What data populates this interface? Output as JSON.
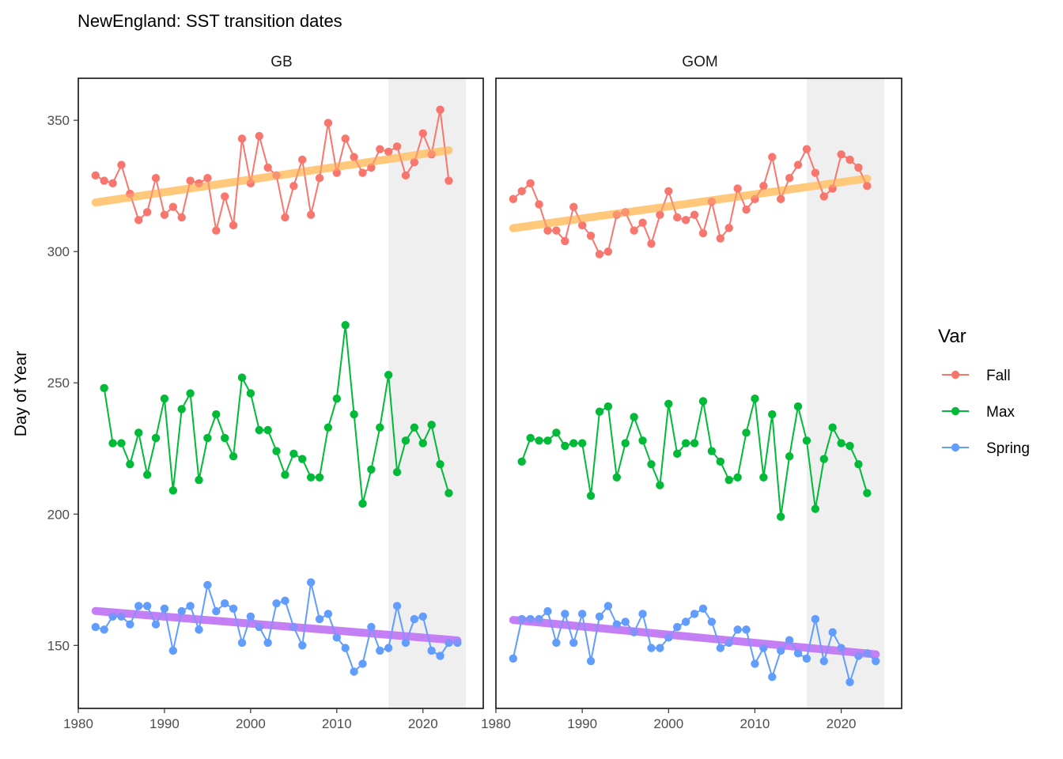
{
  "chart_data": {
    "type": "line",
    "title": "NewEngland: SST transition dates",
    "ylabel": "Day of Year",
    "xlabel": "",
    "xlim": [
      1980,
      2027
    ],
    "ylim": [
      126,
      366
    ],
    "x_ticks": [
      1980,
      1990,
      2000,
      2010,
      2020
    ],
    "y_ticks": [
      150,
      200,
      250,
      300,
      350
    ],
    "grid": false,
    "legend": {
      "title": "Var",
      "position": "right",
      "entries": [
        {
          "name": "Fall",
          "color": "#F8766D"
        },
        {
          "name": "Max",
          "color": "#00BA38"
        },
        {
          "name": "Spring",
          "color": "#619CFF"
        }
      ]
    },
    "shaded_region": {
      "x": [
        2016,
        2025
      ],
      "color": "#efefef"
    },
    "panels": [
      {
        "name": "GB",
        "series": [
          {
            "name": "Fall",
            "x": [
              1982,
              1983,
              1984,
              1985,
              1986,
              1987,
              1988,
              1989,
              1990,
              1991,
              1992,
              1993,
              1994,
              1995,
              1996,
              1997,
              1998,
              1999,
              2000,
              2001,
              2002,
              2003,
              2004,
              2005,
              2006,
              2007,
              2008,
              2009,
              2010,
              2011,
              2012,
              2013,
              2014,
              2015,
              2016,
              2017,
              2018,
              2019,
              2020,
              2021,
              2022,
              2023
            ],
            "values": [
              329,
              327,
              326,
              333,
              322,
              312,
              315,
              328,
              314,
              317,
              313,
              327,
              326,
              328,
              308,
              321,
              310,
              343,
              326,
              344,
              332,
              329,
              313,
              325,
              335,
              314,
              328,
              349,
              330,
              343,
              336,
              330,
              332,
              339,
              338,
              340,
              329,
              334,
              345,
              337,
              354,
              327
            ]
          },
          {
            "name": "Max",
            "x": [
              1983,
              1984,
              1985,
              1986,
              1987,
              1988,
              1989,
              1990,
              1991,
              1992,
              1993,
              1994,
              1995,
              1996,
              1997,
              1998,
              1999,
              2000,
              2001,
              2002,
              2003,
              2004,
              2005,
              2006,
              2007,
              2008,
              2009,
              2010,
              2011,
              2012,
              2013,
              2014,
              2015,
              2016,
              2017,
              2018,
              2019,
              2020,
              2021,
              2022,
              2023
            ],
            "values": [
              248,
              227,
              227,
              219,
              231,
              215,
              229,
              244,
              209,
              240,
              246,
              213,
              229,
              238,
              229,
              222,
              252,
              246,
              232,
              232,
              224,
              215,
              223,
              221,
              214,
              214,
              233,
              244,
              272,
              238,
              204,
              217,
              233,
              253,
              216,
              228,
              233,
              227,
              234,
              219,
              208
            ]
          },
          {
            "name": "Spring",
            "x": [
              1982,
              1983,
              1984,
              1985,
              1986,
              1987,
              1988,
              1989,
              1990,
              1991,
              1992,
              1993,
              1994,
              1995,
              1996,
              1997,
              1998,
              1999,
              2000,
              2001,
              2002,
              2003,
              2004,
              2005,
              2006,
              2007,
              2008,
              2009,
              2010,
              2011,
              2012,
              2013,
              2014,
              2015,
              2016,
              2017,
              2018,
              2019,
              2020,
              2021,
              2022,
              2023,
              2024
            ],
            "values": [
              157,
              156,
              161,
              161,
              158,
              165,
              165,
              158,
              164,
              148,
              163,
              165,
              156,
              173,
              163,
              166,
              164,
              151,
              161,
              157,
              151,
              166,
              167,
              157,
              150,
              174,
              160,
              162,
              153,
              149,
              140,
              143,
              157,
              148,
              149,
              165,
              151,
              160,
              161,
              148,
              146,
              151,
              151
            ]
          }
        ],
        "trends": [
          {
            "name": "Fall",
            "x": [
              1982,
              2023
            ],
            "values": [
              318.7,
              338.6
            ],
            "color": "#FFC87A"
          },
          {
            "name": "Spring",
            "x": [
              1982,
              2024
            ],
            "values": [
              163.1,
              151.9
            ],
            "color": "#C47FF4"
          }
        ]
      },
      {
        "name": "GOM",
        "series": [
          {
            "name": "Fall",
            "x": [
              1982,
              1983,
              1984,
              1985,
              1986,
              1987,
              1988,
              1989,
              1990,
              1991,
              1992,
              1993,
              1994,
              1995,
              1996,
              1997,
              1998,
              1999,
              2000,
              2001,
              2002,
              2003,
              2004,
              2005,
              2006,
              2007,
              2008,
              2009,
              2010,
              2011,
              2012,
              2013,
              2014,
              2015,
              2016,
              2017,
              2018,
              2019,
              2020,
              2021,
              2022,
              2023
            ],
            "values": [
              320,
              323,
              326,
              318,
              308,
              308,
              304,
              317,
              310,
              306,
              299,
              300,
              314,
              315,
              308,
              311,
              303,
              314,
              323,
              313,
              312,
              314,
              307,
              319,
              305,
              309,
              324,
              316,
              320,
              325,
              336,
              320,
              328,
              333,
              339,
              330,
              321,
              324,
              337,
              335,
              332,
              325
            ]
          },
          {
            "name": "Max",
            "x": [
              1983,
              1984,
              1985,
              1986,
              1987,
              1988,
              1989,
              1990,
              1991,
              1992,
              1993,
              1994,
              1995,
              1996,
              1997,
              1998,
              1999,
              2000,
              2001,
              2002,
              2003,
              2004,
              2005,
              2006,
              2007,
              2008,
              2009,
              2010,
              2011,
              2012,
              2013,
              2014,
              2015,
              2016,
              2017,
              2018,
              2019,
              2020,
              2021,
              2022,
              2023
            ],
            "values": [
              220,
              229,
              228,
              228,
              231,
              226,
              227,
              227,
              207,
              239,
              241,
              214,
              227,
              237,
              228,
              219,
              211,
              242,
              223,
              227,
              227,
              243,
              224,
              220,
              213,
              214,
              231,
              244,
              214,
              238,
              199,
              222,
              241,
              228,
              202,
              221,
              233,
              227,
              226,
              219,
              208
            ]
          },
          {
            "name": "Spring",
            "x": [
              1982,
              1983,
              1984,
              1985,
              1986,
              1987,
              1988,
              1989,
              1990,
              1991,
              1992,
              1993,
              1994,
              1995,
              1996,
              1997,
              1998,
              1999,
              2000,
              2001,
              2002,
              2003,
              2004,
              2005,
              2006,
              2007,
              2008,
              2009,
              2010,
              2011,
              2012,
              2013,
              2014,
              2015,
              2016,
              2017,
              2018,
              2019,
              2020,
              2021,
              2022,
              2023,
              2024
            ],
            "values": [
              145,
              160,
              160,
              160,
              163,
              151,
              162,
              151,
              162,
              144,
              161,
              165,
              158,
              159,
              155,
              162,
              149,
              149,
              153,
              157,
              159,
              162,
              164,
              159,
              149,
              151,
              156,
              156,
              143,
              149,
              138,
              148,
              152,
              147,
              145,
              160,
              144,
              155,
              149,
              136,
              146,
              147,
              144
            ]
          }
        ],
        "trends": [
          {
            "name": "Fall",
            "x": [
              1982,
              2023
            ],
            "values": [
              308.9,
              327.8
            ],
            "color": "#FFC87A"
          },
          {
            "name": "Spring",
            "x": [
              1982,
              2024
            ],
            "values": [
              159.7,
              146.6
            ],
            "color": "#C47FF4"
          }
        ]
      }
    ]
  }
}
